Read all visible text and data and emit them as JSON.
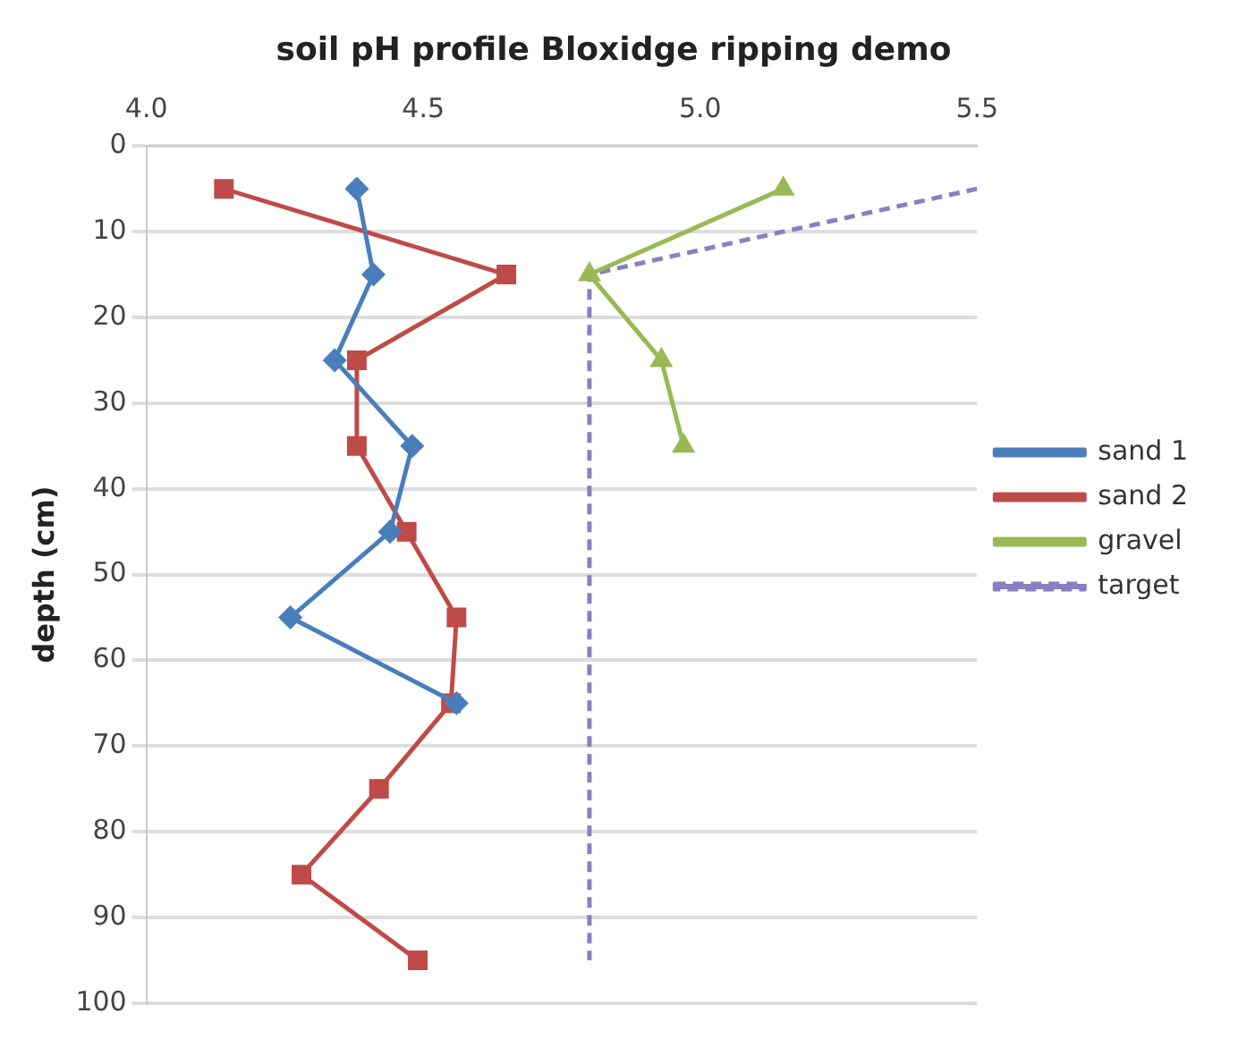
{
  "chart_data": {
    "type": "line",
    "title": "soil pH profile Bloxidge ripping demo",
    "ylabel": "depth (cm)",
    "xlim": [
      4.0,
      5.5
    ],
    "xticks": [
      {
        "value": 4.0,
        "label": "4.0"
      },
      {
        "value": 4.5,
        "label": "4.5"
      },
      {
        "value": 5.0,
        "label": "5.0"
      },
      {
        "value": 5.5,
        "label": "5.5"
      }
    ],
    "ylim": [
      100,
      0
    ],
    "yticks": [
      0,
      10,
      20,
      30,
      40,
      50,
      60,
      70,
      80,
      90,
      100
    ],
    "grid": "y",
    "legend": "right",
    "series": [
      {
        "name": "sand 1",
        "color": "#4a7ebb",
        "marker": "diamond",
        "x": [
          4.38,
          4.41,
          4.34,
          4.48,
          4.44,
          4.26,
          4.56
        ],
        "values": [
          5,
          15,
          25,
          35,
          45,
          55,
          65
        ]
      },
      {
        "name": "sand 2",
        "color": "#be4b48",
        "marker": "square",
        "x": [
          4.14,
          4.65,
          4.38,
          4.38,
          4.47,
          4.56,
          4.55,
          4.42,
          4.28,
          4.49
        ],
        "values": [
          5,
          15,
          25,
          35,
          45,
          55,
          65,
          75,
          85,
          95
        ]
      },
      {
        "name": "gravel",
        "color": "#98b954",
        "marker": "triangle",
        "x": [
          5.15,
          4.8,
          4.93,
          4.97
        ],
        "values": [
          5,
          15,
          25,
          35
        ]
      },
      {
        "name": "target",
        "color": "#8a7fc0",
        "marker": "none",
        "line_style": "dashed",
        "x": [
          5.5,
          4.8,
          4.8
        ],
        "values": [
          5,
          15,
          95
        ]
      }
    ]
  }
}
